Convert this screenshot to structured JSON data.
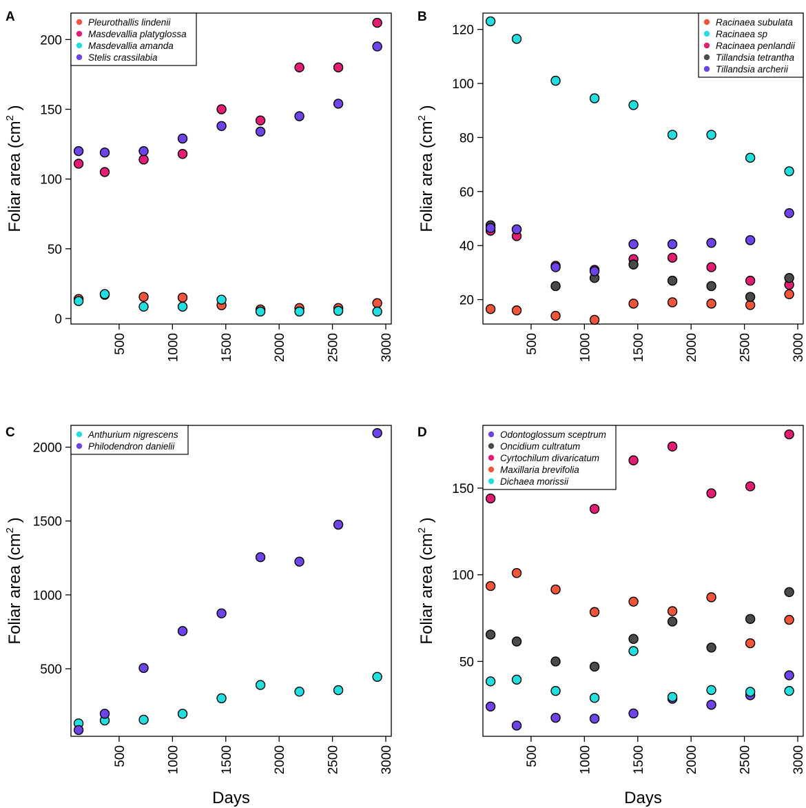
{
  "figure": {
    "xlabel": "Days"
  },
  "colors": {
    "red": "#F2553A",
    "pink": "#E51C74",
    "cyan": "#22DEDF",
    "purple": "#6E43E7",
    "gray": "#4A4A4A"
  },
  "chart_data": [
    {
      "panel": "A",
      "type": "scatter",
      "xlabel": "",
      "ylabel": "Foliar area (cm",
      "ylabel_sup": "2",
      "ylabel_close": " )",
      "xlim": [
        100,
        3000
      ],
      "ylim": [
        0,
        215
      ],
      "xticks": [
        500,
        1000,
        1500,
        2000,
        2500,
        3000
      ],
      "yticks": [
        0,
        50,
        100,
        150,
        200
      ],
      "legend_position": "top-left",
      "x": [
        120,
        365,
        730,
        1095,
        1460,
        1825,
        2190,
        2555,
        2920
      ],
      "series": [
        {
          "name": "Pleurothallis lindenii",
          "color": "#F2553A",
          "values": [
            14,
            17,
            15.5,
            15,
            9.5,
            6.5,
            7.5,
            7.5,
            11
          ]
        },
        {
          "name": "Masdevallia platyglossa",
          "color": "#E51C74",
          "values": [
            111,
            105,
            114,
            118,
            150,
            142,
            180,
            180,
            212
          ]
        },
        {
          "name": "Masdevallia amanda",
          "color": "#22DEDF",
          "values": [
            12.5,
            17.5,
            8.5,
            8.5,
            13.5,
            5,
            5,
            5.5,
            5
          ]
        },
        {
          "name": "Stelis crassilabia",
          "color": "#6E43E7",
          "values": [
            120,
            119,
            120,
            129,
            138,
            134,
            145,
            154,
            195
          ]
        }
      ]
    },
    {
      "panel": "B",
      "type": "scatter",
      "xlabel": "",
      "ylabel": "Foliar area (cm",
      "ylabel_sup": "2",
      "ylabel_close": " )",
      "xlim": [
        100,
        3000
      ],
      "ylim": [
        13,
        124
      ],
      "xticks": [
        500,
        1000,
        1500,
        2000,
        2500,
        3000
      ],
      "yticks": [
        20,
        40,
        60,
        80,
        100,
        120
      ],
      "legend_position": "top-right",
      "x": [
        120,
        365,
        730,
        1095,
        1460,
        1825,
        2190,
        2555,
        2920
      ],
      "series": [
        {
          "name": "Racinaea subulata",
          "color": "#F2553A",
          "values": [
            16.5,
            16,
            14,
            12.5,
            18.5,
            19,
            18.5,
            18,
            22
          ]
        },
        {
          "name": "Racinaea sp",
          "color": "#22DEDF",
          "values": [
            123,
            116.5,
            101,
            94.5,
            92,
            81,
            81,
            72.5,
            67.5
          ]
        },
        {
          "name": "Racinaea penlandii",
          "color": "#E51C74",
          "values": [
            45.5,
            43.5,
            32.5,
            31,
            35,
            35.5,
            32,
            27,
            25.5
          ]
        },
        {
          "name": "Tillandsia tetrantha",
          "color": "#4A4A4A",
          "values": [
            47.5,
            46,
            25,
            28,
            33,
            27,
            25,
            21,
            28
          ]
        },
        {
          "name": "Tillandsia archerii",
          "color": "#6E43E7",
          "values": [
            46.5,
            46,
            32,
            30.5,
            40.5,
            40.5,
            41,
            42,
            52
          ]
        }
      ]
    },
    {
      "panel": "C",
      "type": "scatter",
      "xlabel": "Days",
      "ylabel": "Foliar area (cm",
      "ylabel_sup": "2",
      "ylabel_close": " )",
      "xlim": [
        100,
        3000
      ],
      "ylim": [
        80,
        2110
      ],
      "xticks": [
        500,
        1000,
        1500,
        2000,
        2500,
        3000
      ],
      "yticks": [
        500,
        1000,
        1500,
        2000
      ],
      "legend_position": "top-left",
      "x": [
        120,
        365,
        730,
        1095,
        1460,
        1825,
        2190,
        2555,
        2920
      ],
      "series": [
        {
          "name": "Anthurium nigrescens",
          "color": "#22DEDF",
          "values": [
            130,
            150,
            155,
            195,
            300,
            390,
            345,
            355,
            445
          ]
        },
        {
          "name": "Philodendron danielii",
          "color": "#6E43E7",
          "values": [
            85,
            195,
            505,
            755,
            875,
            1255,
            1225,
            1475,
            2095
          ]
        }
      ]
    },
    {
      "panel": "D",
      "type": "scatter",
      "xlabel": "Days",
      "ylabel": "Foliar area (cm",
      "ylabel_sup": "2",
      "ylabel_close": " )",
      "xlim": [
        100,
        3000
      ],
      "ylim": [
        10,
        183
      ],
      "xticks": [
        500,
        1000,
        1500,
        2000,
        2500,
        3000
      ],
      "yticks": [
        50,
        100,
        150
      ],
      "legend_position": "top-left",
      "x": [
        120,
        365,
        730,
        1095,
        1460,
        1825,
        2190,
        2555,
        2920
      ],
      "series": [
        {
          "name": "Odontoglossum sceptrum",
          "color": "#6E43E7",
          "values": [
            24,
            13,
            17.5,
            17,
            20,
            28.5,
            25,
            30.5,
            42
          ]
        },
        {
          "name": "Oncidium cultratum",
          "color": "#4A4A4A",
          "values": [
            65.5,
            61.5,
            50,
            47,
            63,
            73,
            58,
            74.5,
            90
          ]
        },
        {
          "name": "Cyrtochilum divaricatum",
          "color": "#E51C74",
          "values": [
            144,
            null,
            null,
            138,
            166,
            174,
            147,
            151,
            181
          ]
        },
        {
          "name": "Maxillaria brevifolia",
          "color": "#F2553A",
          "values": [
            93.5,
            101,
            91.5,
            78.5,
            84.5,
            79,
            87,
            60.5,
            74
          ]
        },
        {
          "name": "Dichaea morissii",
          "color": "#22DEDF",
          "values": [
            38.5,
            39.5,
            33,
            29,
            56,
            29.5,
            33.5,
            32.5,
            33
          ]
        }
      ]
    }
  ]
}
